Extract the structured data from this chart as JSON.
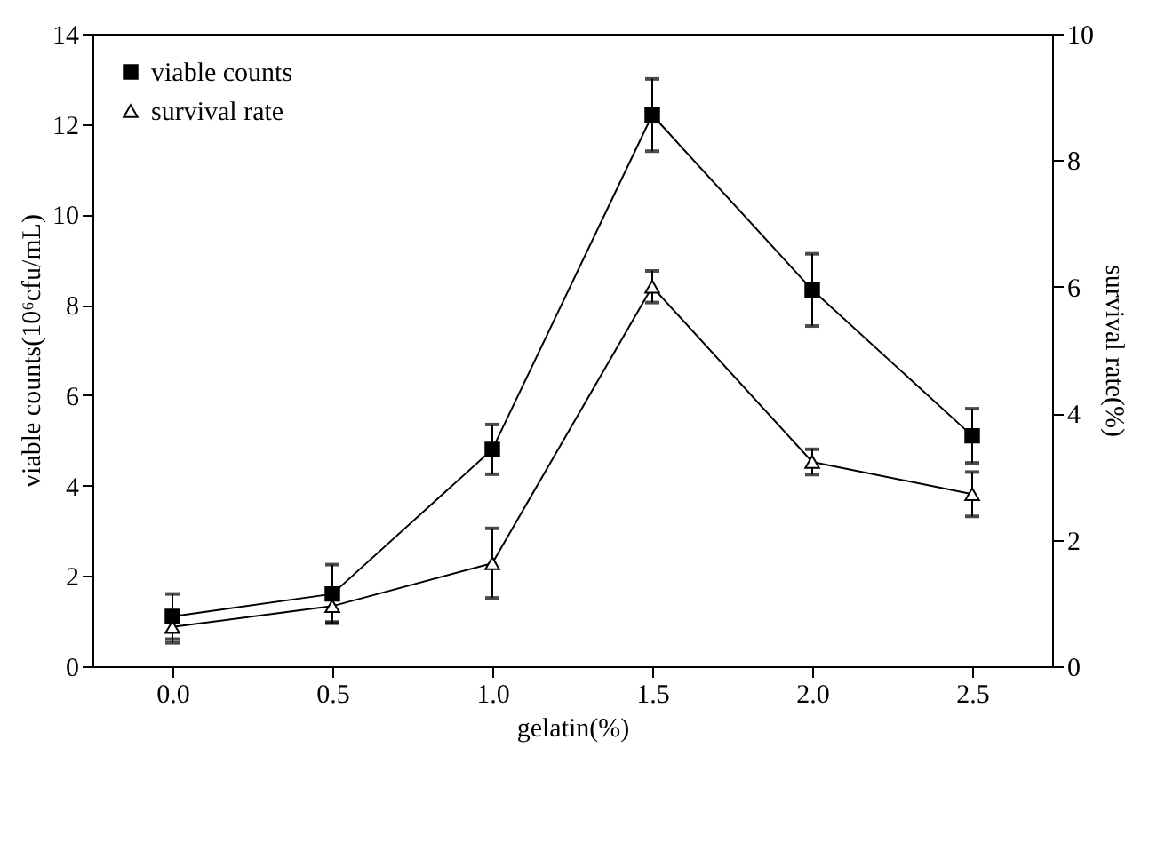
{
  "chart_data": {
    "type": "line",
    "xlabel": "gelatin(%)",
    "ylabel": "viable counts(10⁶cfu/mL)",
    "y2label": "survival rate(%)",
    "x": [
      0,
      0.5,
      1.0,
      1.5,
      2.0,
      2.5
    ],
    "series": [
      {
        "name": "viable counts",
        "color": "#000000",
        "marker": "square",
        "values": [
          1.1,
          1.6,
          4.8,
          12.2,
          8.33,
          5.1
        ],
        "errors": [
          0.5,
          0.65,
          0.55,
          0.8,
          0.8,
          0.6
        ]
      },
      {
        "name": "survival rate",
        "color": "#000000",
        "marker": "triangle",
        "axis": "y2",
        "values": [
          0.62,
          0.95,
          1.63,
          6.0,
          3.23,
          2.72
        ],
        "errors": [
          0.25,
          0.25,
          0.55,
          0.25,
          0.2,
          0.35
        ]
      }
    ],
    "xlim": [
      -0.25,
      2.75
    ],
    "xticks": [
      {
        "value": 0,
        "label": "0.0"
      },
      {
        "value": 0.5,
        "label": "0.5"
      },
      {
        "value": 1,
        "label": "1.0"
      },
      {
        "value": 1.5,
        "label": "1.5"
      },
      {
        "value": 2,
        "label": "2.0"
      },
      {
        "value": 2.5,
        "label": "2.5"
      }
    ],
    "ylim": [
      0,
      14
    ],
    "yticks": [
      0,
      2,
      4,
      6,
      8,
      10,
      12,
      14
    ],
    "y2lim": [
      0,
      10
    ],
    "y2ticks": [
      0,
      2,
      4,
      6,
      8,
      10
    ],
    "grid": false,
    "legend": "top left"
  }
}
